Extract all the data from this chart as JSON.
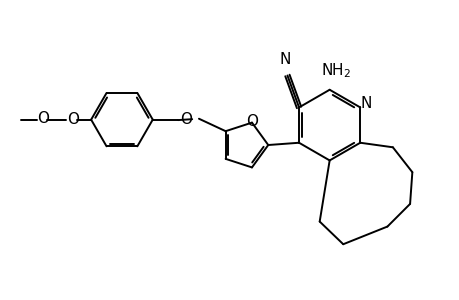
{
  "bg_color": "#ffffff",
  "line_color": "#000000",
  "line_width": 1.4,
  "font_size": 10,
  "figsize": [
    4.6,
    3.0
  ],
  "dpi": 100,
  "xlim": [
    0,
    10
  ],
  "ylim": [
    0,
    6.5
  ]
}
